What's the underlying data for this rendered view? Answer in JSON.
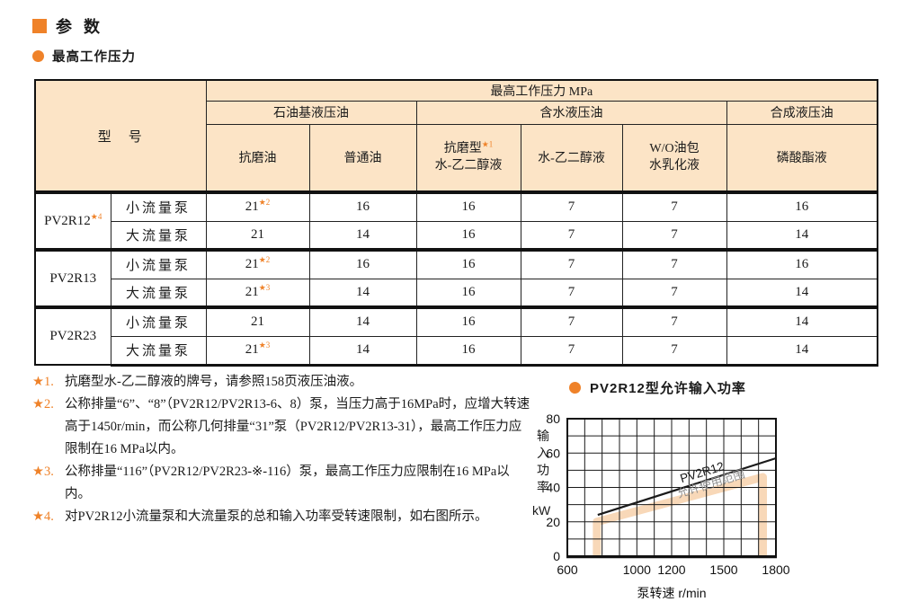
{
  "page": {
    "title": "参 数",
    "subtitle": "最高工作压力"
  },
  "colors": {
    "accent_orange": "#ef8229",
    "header_peach": "#fce4c6",
    "band_peach": "#f8d8b8",
    "border_dark": "#111111",
    "annotation_gray": "#8f8f8f"
  },
  "table": {
    "unit_header": "最高工作压力 MPa",
    "model_header": "型　号",
    "groups": [
      {
        "label": "石油基液压油"
      },
      {
        "label": "含水液压油"
      },
      {
        "label": "合成液压油"
      }
    ],
    "columns": [
      {
        "label": "抗磨油"
      },
      {
        "label": "普通油"
      },
      {
        "label": "抗磨型",
        "sup": "★1",
        "label2": "水-乙二醇液"
      },
      {
        "label": "水-乙二醇液"
      },
      {
        "label": "W/O油包",
        "label2": "水乳化液"
      },
      {
        "label": "磷酸酯液"
      }
    ],
    "model_groups": [
      {
        "model": "PV2R12",
        "model_sup": "★4",
        "rows": [
          {
            "pump": "小流量泵",
            "values": [
              {
                "v": "21",
                "sup": "★2"
              },
              {
                "v": "16"
              },
              {
                "v": "16"
              },
              {
                "v": "7"
              },
              {
                "v": "7"
              },
              {
                "v": "16"
              }
            ]
          },
          {
            "pump": "大流量泵",
            "values": [
              {
                "v": "21"
              },
              {
                "v": "14"
              },
              {
                "v": "16"
              },
              {
                "v": "7"
              },
              {
                "v": "7"
              },
              {
                "v": "14"
              }
            ]
          }
        ]
      },
      {
        "model": "PV2R13",
        "rows": [
          {
            "pump": "小流量泵",
            "values": [
              {
                "v": "21",
                "sup": "★2"
              },
              {
                "v": "16"
              },
              {
                "v": "16"
              },
              {
                "v": "7"
              },
              {
                "v": "7"
              },
              {
                "v": "16"
              }
            ]
          },
          {
            "pump": "大流量泵",
            "values": [
              {
                "v": "21",
                "sup": "★3"
              },
              {
                "v": "14"
              },
              {
                "v": "16"
              },
              {
                "v": "7"
              },
              {
                "v": "7"
              },
              {
                "v": "14"
              }
            ]
          }
        ]
      },
      {
        "model": "PV2R23",
        "rows": [
          {
            "pump": "小流量泵",
            "values": [
              {
                "v": "21"
              },
              {
                "v": "14"
              },
              {
                "v": "16"
              },
              {
                "v": "7"
              },
              {
                "v": "7"
              },
              {
                "v": "14"
              }
            ]
          },
          {
            "pump": "大流量泵",
            "values": [
              {
                "v": "21",
                "sup": "★3"
              },
              {
                "v": "14"
              },
              {
                "v": "16"
              },
              {
                "v": "7"
              },
              {
                "v": "7"
              },
              {
                "v": "14"
              }
            ]
          }
        ]
      }
    ]
  },
  "footnotes": [
    {
      "marker": "★1.",
      "text": "抗磨型水-乙二醇液的牌号，请参照158页液压油液。"
    },
    {
      "marker": "★2.",
      "text": "公称排量“6”、“8”（PV2R12/PV2R13-6、8）泵，当压力高于16MPa时，应增大转速高于1450r/min，而公称几何排量“31”泵（PV2R12/PV2R13-31），最高工作压力应限制在16 MPa以内。"
    },
    {
      "marker": "★3.",
      "text": "公称排量“116”（PV2R12/PV2R23-※-116）泵，最高工作压力应限制在16 MPa以内。"
    },
    {
      "marker": "★4.",
      "text": "对PV2R12小流量泵和大流量泵的总和输入功率受转速限制，如右图所示。"
    }
  ],
  "chart": {
    "title": "PV2R12型允许输入功率",
    "ylabel_chars": "输入功率",
    "ylabel_unit": "kW"
  },
  "chart_data": {
    "type": "line",
    "title": "PV2R12型允许输入功率",
    "xlabel": "泵转速  r/min",
    "ylabel": "输入功率 kW",
    "xlim": [
      600,
      1800
    ],
    "ylim": [
      0,
      80
    ],
    "xgrid_step": 100,
    "ygrid_step": 10,
    "xticks": [
      600,
      1000,
      1200,
      1500,
      1800
    ],
    "yticks": [
      0,
      20,
      40,
      60,
      80
    ],
    "grid": true,
    "legend": false,
    "series": [
      {
        "name": "PV2R12 功率限制线",
        "kind": "line",
        "color": "#1a1a1a",
        "width": 2.2,
        "points": [
          [
            775,
            24
          ],
          [
            1800,
            57
          ]
        ]
      },
      {
        "name": "允许使用范围边界",
        "kind": "band-outline",
        "color": "#f8d8b8",
        "width": 9,
        "points": [
          [
            770,
            0
          ],
          [
            770,
            20
          ],
          [
            1725,
            46
          ],
          [
            1725,
            0
          ]
        ]
      }
    ],
    "annotations": [
      {
        "text": "PV2R12",
        "x": 1382,
        "y": 46.5,
        "rotate": -17,
        "color": "#1a1a1a",
        "size": 13.5
      },
      {
        "text": "允许使用范围",
        "x": 1433,
        "y": 40,
        "rotate": -17,
        "color": "#8f8f8f",
        "size": 13
      }
    ]
  }
}
